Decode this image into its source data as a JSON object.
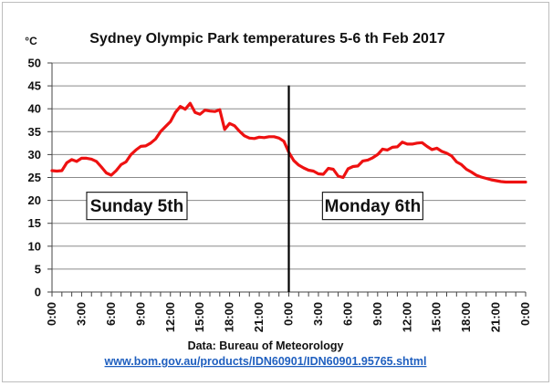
{
  "chart_data": {
    "type": "line",
    "title": "Sydney Olympic Park temperatures 5-6 th Feb 2017",
    "ylabel": "°C",
    "xlabel": "",
    "ylim": [
      0,
      50
    ],
    "yticks": [
      0,
      5,
      10,
      15,
      20,
      25,
      30,
      35,
      40,
      45,
      50
    ],
    "xlim": [
      0,
      48
    ],
    "xtick_labels": [
      "0:00",
      "3:00",
      "6:00",
      "9:00",
      "12:00",
      "15:00",
      "18:00",
      "21:00",
      "0:00",
      "3:00",
      "6:00",
      "9:00",
      "12:00",
      "15:00",
      "18:00",
      "21:00",
      "0:00"
    ],
    "grid": "horizontal",
    "line_color": "#ee1111",
    "x_unit": "hours from 0:00 Sunday 5th",
    "series": [
      {
        "x": [
          0,
          0.5,
          1.0,
          1.5,
          2.0,
          2.5,
          3.0,
          3.5,
          4.0,
          4.5,
          5.0,
          5.5,
          6.0,
          6.5,
          7.0,
          7.5,
          8.0,
          8.5,
          9.0,
          9.5,
          10.0,
          10.5,
          11.0,
          11.5,
          12.0,
          12.5,
          13.0,
          13.5,
          14.0,
          14.5,
          15.0,
          15.5,
          16.0,
          16.5,
          17.0,
          17.5,
          18.0,
          18.5,
          19.0,
          19.5,
          20.0,
          20.5,
          21.0,
          21.5,
          22.0,
          22.5,
          23.0,
          23.5,
          24.0,
          24.5,
          25.0,
          25.5,
          26.0,
          26.5,
          27.0,
          27.5,
          28.0,
          28.5,
          29.0,
          29.5,
          30.0,
          30.5,
          31.0,
          31.5,
          32.0,
          32.5,
          33.0,
          33.5,
          34.0,
          34.5,
          35.0,
          35.5,
          36.0,
          36.5,
          37.0,
          37.5,
          38.0,
          38.5,
          39.0,
          39.5,
          40.0,
          40.5,
          41.0,
          41.5,
          42.0,
          42.5,
          43.0,
          43.5,
          44.0,
          44.5,
          45.0,
          45.5,
          46.0,
          46.5,
          47.0,
          47.5,
          48.0
        ],
        "values": [
          26.5,
          26.4,
          26.5,
          28.2,
          28.9,
          28.5,
          29.2,
          29.2,
          29.0,
          28.5,
          27.3,
          26.0,
          25.5,
          26.5,
          27.8,
          28.4,
          30.0,
          31.0,
          31.8,
          31.9,
          32.5,
          33.4,
          35.0,
          36.1,
          37.2,
          39.2,
          40.5,
          39.9,
          41.2,
          39.2,
          38.8,
          39.7,
          39.5,
          39.4,
          39.8,
          35.5,
          36.8,
          36.3,
          35.1,
          34.1,
          33.6,
          33.5,
          33.8,
          33.7,
          33.9,
          33.9,
          33.6,
          32.9,
          30.5,
          28.7,
          27.7,
          27.1,
          26.6,
          26.4,
          25.8,
          25.7,
          27.0,
          26.8,
          25.3,
          25.0,
          26.9,
          27.4,
          27.5,
          28.6,
          28.8,
          29.3,
          30.0,
          31.2,
          31.0,
          31.6,
          31.7,
          32.7,
          32.3,
          32.3,
          32.5,
          32.6,
          31.8,
          31.1,
          31.4,
          30.7,
          30.3,
          29.7,
          28.4,
          27.8,
          26.8,
          26.2,
          25.5,
          25.1,
          24.8,
          24.5,
          24.3,
          24.1,
          24.0,
          24.0,
          24.0,
          24.0,
          24.0
        ]
      }
    ],
    "divider_x": 24,
    "annotations": [
      {
        "label": "Sunday 5th",
        "x": 8.6,
        "y": 18.8
      },
      {
        "label": "Monday 6th",
        "x": 32.5,
        "y": 18.8
      }
    ]
  },
  "caption": "Data: Bureau of Meteorology",
  "source_url_text": "www.bom.gov.au/products/IDN60901/IDN60901.95765.shtml"
}
